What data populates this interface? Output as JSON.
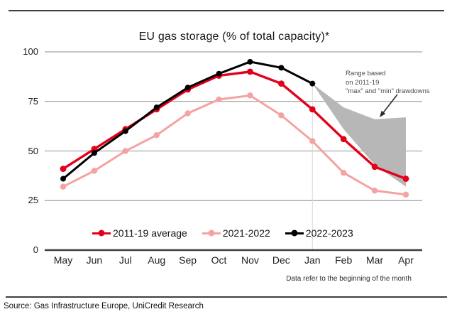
{
  "page": {
    "source": "Source: Gas Infrastructure Europe, UniCredit Research"
  },
  "chart_data": {
    "type": "line",
    "title": "EU gas storage (% of total capacity)*",
    "categories": [
      "May",
      "Jun",
      "Jul",
      "Aug",
      "Sep",
      "Oct",
      "Nov",
      "Dec",
      "Jan",
      "Feb",
      "Mar",
      "Apr"
    ],
    "y_ticks": [
      0,
      25,
      50,
      75,
      100
    ],
    "ylim": [
      0,
      100
    ],
    "grid": "horizontal",
    "legend_position": "bottom-inside",
    "series": [
      {
        "name": "2011-19 average",
        "color": "#e2001a",
        "values": [
          41,
          51,
          61,
          71,
          81,
          88,
          90,
          84,
          71,
          56,
          42,
          36
        ]
      },
      {
        "name": "2021-2022",
        "color": "#f5a2a2",
        "values": [
          32,
          40,
          50,
          58,
          69,
          76,
          78,
          68,
          55,
          39,
          30,
          28
        ]
      },
      {
        "name": "2022-2023",
        "color": "#000000",
        "values": [
          36,
          49,
          60,
          72,
          82,
          89,
          95,
          92,
          84,
          null,
          null,
          null
        ]
      }
    ],
    "range_band": {
      "label": "Range based on 2011-19 \"max\" and \"min\" drawdowns",
      "color": "#b7b7b7",
      "start_category": "Jan",
      "upper": [
        84,
        72,
        66,
        67
      ],
      "lower": [
        84,
        61,
        43,
        32
      ]
    },
    "guide_line": {
      "category": "Jan",
      "color": "#d9d9d9"
    },
    "annotation": {
      "lines": [
        "Range based",
        "on 2011-19",
        "\"max\" and \"min\" drawdowns"
      ]
    },
    "footnote": "Data refer to the beginning of the month"
  }
}
